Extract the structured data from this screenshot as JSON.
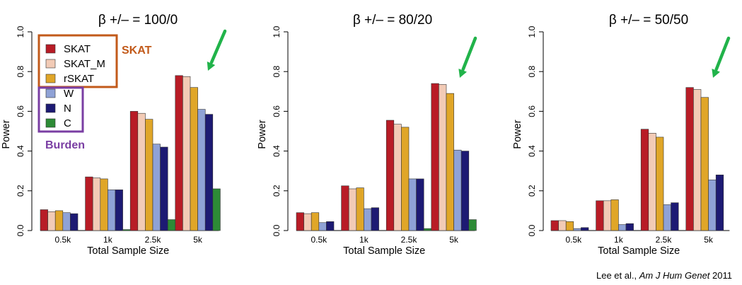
{
  "chart_data": [
    {
      "type": "bar",
      "title": "β +/– = 100/0",
      "xlabel": "Total Sample Size",
      "ylabel": "Power",
      "ylim": [
        0,
        1.0
      ],
      "yticks": [
        "0.0",
        "0.2",
        "0.4",
        "0.6",
        "0.8",
        "1.0"
      ],
      "categories": [
        "0.5k",
        "1k",
        "2.5k",
        "5k"
      ],
      "series": [
        {
          "name": "SKAT",
          "values": [
            0.105,
            0.27,
            0.6,
            0.78
          ]
        },
        {
          "name": "SKAT_M",
          "values": [
            0.095,
            0.265,
            0.59,
            0.775
          ]
        },
        {
          "name": "rSKAT",
          "values": [
            0.1,
            0.26,
            0.56,
            0.72
          ]
        },
        {
          "name": "W",
          "values": [
            0.09,
            0.205,
            0.435,
            0.61
          ]
        },
        {
          "name": "N",
          "values": [
            0.085,
            0.205,
            0.42,
            0.585
          ]
        },
        {
          "name": "C",
          "values": [
            0.0,
            0.005,
            0.055,
            0.21
          ]
        }
      ]
    },
    {
      "type": "bar",
      "title": "β +/– = 80/20",
      "xlabel": "Total Sample Size",
      "ylabel": "Power",
      "ylim": [
        0,
        1.0
      ],
      "yticks": [
        "0.0",
        "0.2",
        "0.4",
        "0.6",
        "0.8",
        "1.0"
      ],
      "categories": [
        "0.5k",
        "1k",
        "2.5k",
        "5k"
      ],
      "series": [
        {
          "name": "SKAT",
          "values": [
            0.09,
            0.225,
            0.555,
            0.74
          ]
        },
        {
          "name": "SKAT_M",
          "values": [
            0.085,
            0.21,
            0.535,
            0.735
          ]
        },
        {
          "name": "rSKAT",
          "values": [
            0.09,
            0.215,
            0.52,
            0.69
          ]
        },
        {
          "name": "W",
          "values": [
            0.04,
            0.11,
            0.26,
            0.405
          ]
        },
        {
          "name": "N",
          "values": [
            0.045,
            0.115,
            0.26,
            0.4
          ]
        },
        {
          "name": "C",
          "values": [
            0.0,
            0.0,
            0.01,
            0.055
          ]
        }
      ]
    },
    {
      "type": "bar",
      "title": "β +/– = 50/50",
      "xlabel": "Total Sample Size",
      "ylabel": "Power",
      "ylim": [
        0,
        1.0
      ],
      "yticks": [
        "0.0",
        "0.2",
        "0.4",
        "0.6",
        "0.8",
        "1.0"
      ],
      "categories": [
        "0.5k",
        "1k",
        "2.5k",
        "5k"
      ],
      "series": [
        {
          "name": "SKAT",
          "values": [
            0.05,
            0.15,
            0.51,
            0.72
          ]
        },
        {
          "name": "SKAT_M",
          "values": [
            0.05,
            0.15,
            0.49,
            0.71
          ]
        },
        {
          "name": "rSKAT",
          "values": [
            0.045,
            0.155,
            0.47,
            0.67
          ]
        },
        {
          "name": "W",
          "values": [
            0.01,
            0.03,
            0.13,
            0.255
          ]
        },
        {
          "name": "N",
          "values": [
            0.015,
            0.035,
            0.14,
            0.28
          ]
        },
        {
          "name": "C",
          "values": [
            0.0,
            0.0,
            0.0,
            0.0
          ]
        }
      ]
    }
  ],
  "series_colors": {
    "SKAT": "#b81c26",
    "SKAT_M": "#f2cbb6",
    "rSKAT": "#e0a628",
    "W": "#8fa2d6",
    "N": "#1d1a73",
    "C": "#2d8b36"
  },
  "legend": {
    "groups": [
      {
        "label": "SKAT",
        "color": "#c25a1a",
        "items": [
          "SKAT",
          "SKAT_M",
          "rSKAT"
        ]
      },
      {
        "label": "Burden",
        "color": "#7a3ea3",
        "items": [
          "W",
          "N",
          "C"
        ]
      }
    ]
  },
  "arrow_color": "#21b34a",
  "citation": {
    "prefix": "Lee et al., ",
    "journal": "Am J Hum Genet",
    "year": " 2011"
  }
}
